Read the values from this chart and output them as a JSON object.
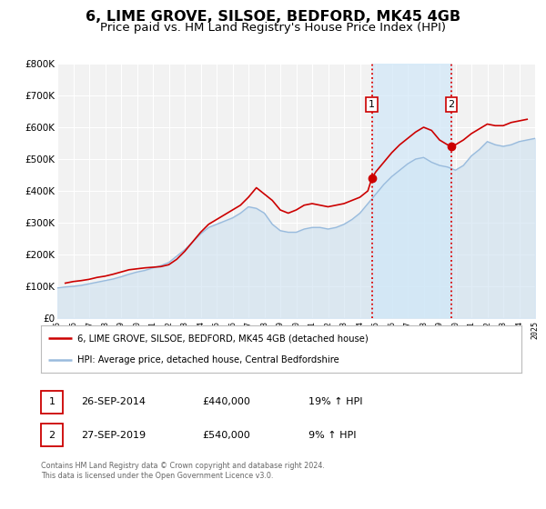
{
  "title": "6, LIME GROVE, SILSOE, BEDFORD, MK45 4GB",
  "subtitle": "Price paid vs. HM Land Registry's House Price Index (HPI)",
  "title_fontsize": 11.5,
  "subtitle_fontsize": 9.5,
  "background_color": "#ffffff",
  "plot_bg_color": "#f2f2f2",
  "grid_color": "#ffffff",
  "xmin": 1995,
  "xmax": 2025,
  "ymin": 0,
  "ymax": 800000,
  "yticks": [
    0,
    100000,
    200000,
    300000,
    400000,
    500000,
    600000,
    700000,
    800000
  ],
  "ytick_labels": [
    "£0",
    "£100K",
    "£200K",
    "£300K",
    "£400K",
    "£500K",
    "£600K",
    "£700K",
    "£800K"
  ],
  "xticks": [
    1995,
    1996,
    1997,
    1998,
    1999,
    2000,
    2001,
    2002,
    2003,
    2004,
    2005,
    2006,
    2007,
    2008,
    2009,
    2010,
    2011,
    2012,
    2013,
    2014,
    2015,
    2016,
    2017,
    2018,
    2019,
    2020,
    2021,
    2022,
    2023,
    2024,
    2025
  ],
  "red_line_color": "#cc0000",
  "blue_line_color": "#99bbdd",
  "blue_fill_color": "#cce0f0",
  "marker1_date": 2014.75,
  "marker1_value": 440000,
  "marker2_date": 2019.75,
  "marker2_value": 540000,
  "vline1_x": 2014.75,
  "vline2_x": 2019.75,
  "vline_color": "#dd0000",
  "legend_label_red": "6, LIME GROVE, SILSOE, BEDFORD, MK45 4GB (detached house)",
  "legend_label_blue": "HPI: Average price, detached house, Central Bedfordshire",
  "annotation1_date": "26-SEP-2014",
  "annotation1_price": "£440,000",
  "annotation1_hpi": "19% ↑ HPI",
  "annotation2_date": "27-SEP-2019",
  "annotation2_price": "£540,000",
  "annotation2_hpi": "9% ↑ HPI",
  "footer_text": "Contains HM Land Registry data © Crown copyright and database right 2024.\nThis data is licensed under the Open Government Licence v3.0.",
  "red_x": [
    1995.5,
    1996.0,
    1996.5,
    1997.0,
    1997.5,
    1998.0,
    1998.5,
    1999.0,
    1999.5,
    2000.0,
    2000.5,
    2001.0,
    2001.5,
    2002.0,
    2002.5,
    2003.0,
    2003.5,
    2004.0,
    2004.5,
    2005.0,
    2005.5,
    2006.0,
    2006.5,
    2007.0,
    2007.5,
    2008.0,
    2008.5,
    2009.0,
    2009.5,
    2010.0,
    2010.5,
    2011.0,
    2011.5,
    2012.0,
    2012.5,
    2013.0,
    2013.5,
    2014.0,
    2014.5,
    2014.75,
    2015.0,
    2015.5,
    2016.0,
    2016.5,
    2017.0,
    2017.5,
    2018.0,
    2018.5,
    2018.75,
    2019.0,
    2019.5,
    2019.75,
    2020.0,
    2020.5,
    2021.0,
    2021.5,
    2022.0,
    2022.5,
    2023.0,
    2023.5,
    2024.0,
    2024.5
  ],
  "red_y": [
    110000,
    115000,
    118000,
    122000,
    128000,
    132000,
    138000,
    145000,
    152000,
    155000,
    158000,
    160000,
    162000,
    168000,
    185000,
    210000,
    240000,
    270000,
    295000,
    310000,
    325000,
    340000,
    355000,
    380000,
    410000,
    390000,
    370000,
    340000,
    330000,
    340000,
    355000,
    360000,
    355000,
    350000,
    355000,
    360000,
    370000,
    380000,
    400000,
    440000,
    460000,
    490000,
    520000,
    545000,
    565000,
    585000,
    600000,
    590000,
    575000,
    560000,
    545000,
    540000,
    545000,
    560000,
    580000,
    595000,
    610000,
    605000,
    605000,
    615000,
    620000,
    625000
  ],
  "blue_x": [
    1995.0,
    1995.5,
    1996.0,
    1996.5,
    1997.0,
    1997.5,
    1998.0,
    1998.5,
    1999.0,
    1999.5,
    2000.0,
    2000.5,
    2001.0,
    2001.5,
    2002.0,
    2002.5,
    2003.0,
    2003.5,
    2004.0,
    2004.5,
    2005.0,
    2005.5,
    2006.0,
    2006.5,
    2007.0,
    2007.5,
    2008.0,
    2008.5,
    2009.0,
    2009.5,
    2010.0,
    2010.5,
    2011.0,
    2011.5,
    2012.0,
    2012.5,
    2013.0,
    2013.5,
    2014.0,
    2014.5,
    2015.0,
    2015.5,
    2016.0,
    2016.5,
    2017.0,
    2017.5,
    2018.0,
    2018.5,
    2019.0,
    2019.5,
    2020.0,
    2020.5,
    2021.0,
    2021.5,
    2022.0,
    2022.5,
    2023.0,
    2023.5,
    2024.0,
    2024.5,
    2025.0
  ],
  "blue_y": [
    95000,
    98000,
    100000,
    103000,
    108000,
    113000,
    118000,
    123000,
    130000,
    138000,
    145000,
    150000,
    158000,
    165000,
    175000,
    195000,
    215000,
    240000,
    265000,
    285000,
    295000,
    305000,
    315000,
    330000,
    350000,
    345000,
    330000,
    295000,
    275000,
    270000,
    270000,
    280000,
    285000,
    285000,
    280000,
    285000,
    295000,
    310000,
    330000,
    360000,
    390000,
    420000,
    445000,
    465000,
    485000,
    500000,
    505000,
    490000,
    480000,
    475000,
    465000,
    480000,
    510000,
    530000,
    555000,
    545000,
    540000,
    545000,
    555000,
    560000,
    565000
  ]
}
